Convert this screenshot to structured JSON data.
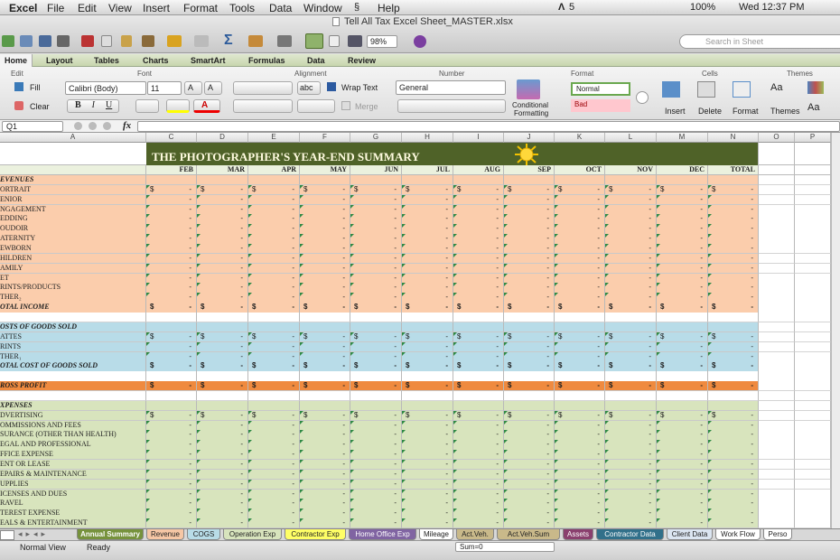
{
  "menu_bar": {
    "app": "Excel",
    "items": [
      "File",
      "Edit",
      "View",
      "Insert",
      "Format",
      "Tools",
      "Data",
      "Window",
      "Help"
    ],
    "status": [
      "5",
      "100%",
      "Wed 12:37 PM"
    ]
  },
  "window": {
    "title": "Tell All Tax Excel Sheet_MASTER.xlsx",
    "zoom": "98%",
    "search_placeholder": "Search in Sheet"
  },
  "ribbon": {
    "tabs": [
      "Home",
      "Layout",
      "Tables",
      "Charts",
      "SmartArt",
      "Formulas",
      "Data",
      "Review"
    ],
    "groups": [
      "Edit",
      "Font",
      "Alignment",
      "Number",
      "Format",
      "Cells",
      "Themes"
    ],
    "controls": {
      "fill": "Fill",
      "clear": "Clear",
      "font_name": "Calibri (Body)",
      "font_size": "11",
      "abc": "abc",
      "wrap_text": "Wrap Text",
      "merge": "Merge",
      "number_format": "General",
      "conditional_1": "Conditional",
      "conditional_2": "Formatting",
      "style_normal": "Normal",
      "style_bad": "Bad",
      "insert": "Insert",
      "delete": "Delete",
      "format": "Format",
      "themes": "Themes",
      "aa": "Aa"
    }
  },
  "formula_bar": {
    "cell": "Q1",
    "fx": "fx"
  },
  "sheet": {
    "columns": [
      "A",
      "C",
      "D",
      "E",
      "F",
      "G",
      "H",
      "I",
      "J",
      "K",
      "L",
      "M",
      "N",
      "O",
      "P"
    ],
    "title": "THE PHOTOGRAPHER'S YEAR-END SUMMARY",
    "months": [
      "FEB",
      "MAR",
      "APR",
      "MAY",
      "JUN",
      "JUL",
      "AUG",
      "SEP",
      "OCT",
      "NOV",
      "DEC",
      "TOTAL"
    ],
    "currency_symbol": "$",
    "zero_display": "-",
    "section_colors": {
      "revenue": "#fbcdac",
      "cogs": "#b8dce8",
      "gross": "#ef8a3f",
      "expenses": "#d8e4bd"
    },
    "rows": [
      {
        "label": "EVENUES",
        "kind": "header",
        "section": "revenue"
      },
      {
        "label": "ORTRAIT",
        "kind": "item",
        "section": "revenue",
        "dollar": true
      },
      {
        "label": "ENIOR",
        "kind": "item",
        "section": "revenue"
      },
      {
        "label": "NGAGEMENT",
        "kind": "item",
        "section": "revenue"
      },
      {
        "label": "EDDING",
        "kind": "item",
        "section": "revenue"
      },
      {
        "label": "OUDOIR",
        "kind": "item",
        "section": "revenue"
      },
      {
        "label": "ATERNITY",
        "kind": "item",
        "section": "revenue"
      },
      {
        "label": "EWBORN",
        "kind": "item",
        "section": "revenue"
      },
      {
        "label": "HILDREN",
        "kind": "item",
        "section": "revenue"
      },
      {
        "label": "AMILY",
        "kind": "item",
        "section": "revenue"
      },
      {
        "label": "ET",
        "kind": "item",
        "section": "revenue"
      },
      {
        "label": "RINTS/PRODUCTS",
        "kind": "item",
        "section": "revenue"
      },
      {
        "label": "THER₂",
        "kind": "item",
        "section": "revenue"
      },
      {
        "label": "OTAL INCOME",
        "kind": "total",
        "section": "revenue",
        "dollar": true
      },
      {
        "kind": "blank"
      },
      {
        "label": "OSTS OF GOODS SOLD",
        "kind": "header",
        "section": "cogs"
      },
      {
        "label": "ATTES",
        "kind": "item",
        "section": "cogs",
        "dollar": true
      },
      {
        "label": "RINTS",
        "kind": "item",
        "section": "cogs"
      },
      {
        "label": "THER₁",
        "kind": "item",
        "section": "cogs"
      },
      {
        "label": "OTAL COST OF GOODS SOLD",
        "kind": "total",
        "section": "cogs",
        "dollar": true
      },
      {
        "kind": "blank"
      },
      {
        "label": "ROSS PROFIT",
        "kind": "total",
        "section": "gross",
        "dollar": true
      },
      {
        "kind": "blank"
      },
      {
        "label": "XPENSES",
        "kind": "header",
        "section": "expenses"
      },
      {
        "label": "DVERTISING",
        "kind": "item",
        "section": "expenses",
        "dollar": true
      },
      {
        "label": "OMMISSIONS AND FEES",
        "kind": "item",
        "section": "expenses"
      },
      {
        "label": "SURANCE (OTHER THAN HEALTH)",
        "kind": "item",
        "section": "expenses"
      },
      {
        "label": "EGAL AND PROFESSIONAL",
        "kind": "item",
        "section": "expenses"
      },
      {
        "label": "FFICE EXPENSE",
        "kind": "item",
        "section": "expenses"
      },
      {
        "label": "ENT OR LEASE",
        "kind": "item",
        "section": "expenses"
      },
      {
        "label": "EPAIRS & MAINTENANCE",
        "kind": "item",
        "section": "expenses"
      },
      {
        "label": "UPPLIES",
        "kind": "item",
        "section": "expenses"
      },
      {
        "label": "ICENSES AND DUES",
        "kind": "item",
        "section": "expenses"
      },
      {
        "label": "RAVEL",
        "kind": "item",
        "section": "expenses"
      },
      {
        "label": "TEREST EXPENSE",
        "kind": "item",
        "section": "expenses"
      },
      {
        "label": "EALS & ENTERTAINMENT",
        "kind": "item",
        "section": "expenses"
      }
    ]
  },
  "sheet_tabs": [
    {
      "label": "Annual Summary",
      "color": "#76923c",
      "selected": true
    },
    {
      "label": "Revenue",
      "color": "#f6c7a5"
    },
    {
      "label": "COGS",
      "color": "#b8dce8"
    },
    {
      "label": "Operation Exp",
      "color": "#d8e4bd"
    },
    {
      "label": "Contractor Exp",
      "color": "#ffff66"
    },
    {
      "label": "Home Office Exp",
      "color": "#8064a2"
    },
    {
      "label": "Mileage",
      "color": "#ffffff"
    },
    {
      "label": "Act.Veh.",
      "color": "#c9b98a"
    },
    {
      "label": "Act.Veh.Sum",
      "color": "#c9b98a"
    },
    {
      "label": "Assets",
      "color": "#8a3f6e"
    },
    {
      "label": "Contractor Data",
      "color": "#31708a"
    },
    {
      "label": "Client Data",
      "color": "#dbe5f1"
    },
    {
      "label": "Work Flow",
      "color": "#ffffff"
    },
    {
      "label": "Perso",
      "color": "#ffffff"
    }
  ],
  "status_bar": {
    "view": "Normal View",
    "state": "Ready",
    "sum": "Sum=0"
  }
}
